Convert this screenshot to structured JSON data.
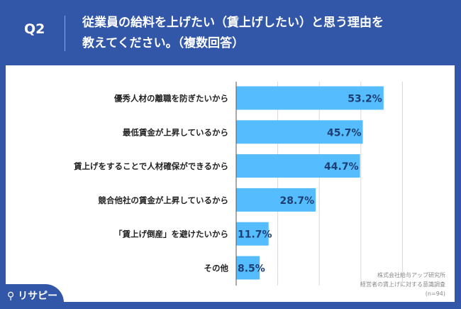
{
  "header": {
    "q": "Q2",
    "title_line1": "従業員の給料を上げたい（賃上げしたい）と思う理由を",
    "title_line2": "教えてください。（複数回答）"
  },
  "source": {
    "line1": "株式会社給与アップ研究所",
    "line2": "経営者の賃上げに対する意識調査",
    "line3": "(n=94)"
  },
  "logo": "リサピー",
  "colors": {
    "bar": "#55bdfd",
    "header": "#3257a8",
    "label": "#1d3f73"
  },
  "chart_data": {
    "type": "bar",
    "orientation": "horizontal",
    "categories": [
      "優秀人材の離職を防ぎたいから",
      "最低賃金が上昇しているから",
      "賃上げをすることで人材確保ができるから",
      "競合他社の賃金が上昇しているから",
      "「賃上げ倒産」を避けたいから",
      "その他"
    ],
    "values": [
      53.2,
      45.7,
      44.7,
      28.7,
      11.7,
      8.5
    ],
    "labels": [
      "53.2%",
      "45.7%",
      "44.7%",
      "28.7%",
      "11.7%",
      "8.5%"
    ],
    "xlim": [
      0,
      75
    ],
    "gridlines": [
      15,
      30,
      45,
      60
    ],
    "grid": true
  }
}
